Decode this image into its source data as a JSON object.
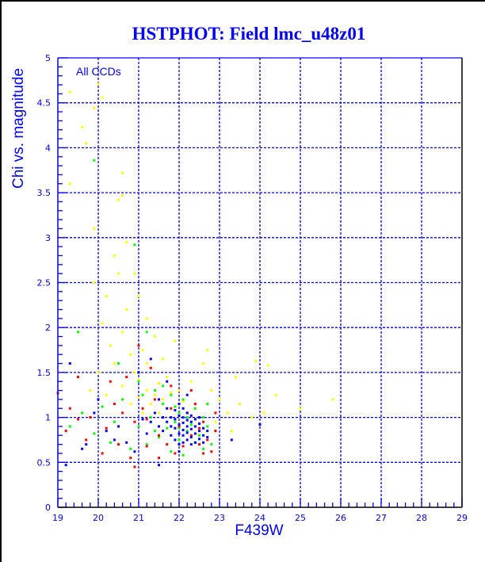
{
  "chart_data": {
    "type": "scatter",
    "title": "HSTPHOT: Field lmc_u48z01",
    "annotation": "All CCDs",
    "xlabel": "F439W",
    "ylabel": "Chi vs. magnitude",
    "xlim": [
      19,
      29
    ],
    "ylim": [
      0,
      5
    ],
    "xticks": [
      "19",
      "20",
      "21",
      "22",
      "23",
      "24",
      "25",
      "26",
      "27",
      "28",
      "29"
    ],
    "yticks": [
      "0",
      "0.5",
      "1",
      "1.5",
      "2",
      "2.5",
      "3",
      "3.5",
      "4",
      "4.5",
      "5"
    ],
    "grid": true,
    "colors": {
      "grid": "#0000ff",
      "axis": "#000000",
      "text": "#0000ff"
    },
    "series": [
      {
        "name": "yellow",
        "color": "#ffff00",
        "points": [
          [
            19.3,
            4.62
          ],
          [
            20.0,
            4.71
          ],
          [
            20.1,
            4.56
          ],
          [
            19.9,
            4.44
          ],
          [
            19.6,
            4.23
          ],
          [
            19.7,
            4.05
          ],
          [
            20.6,
            3.72
          ],
          [
            19.3,
            3.6
          ],
          [
            20.6,
            3.47
          ],
          [
            20.5,
            3.42
          ],
          [
            19.9,
            3.1
          ],
          [
            20.7,
            2.95
          ],
          [
            20.4,
            2.8
          ],
          [
            20.5,
            2.6
          ],
          [
            19.9,
            2.5
          ],
          [
            20.2,
            2.35
          ],
          [
            20.9,
            2.6
          ],
          [
            21.0,
            2.35
          ],
          [
            20.7,
            2.2
          ],
          [
            21.2,
            2.1
          ],
          [
            20.1,
            2.05
          ],
          [
            20.6,
            1.95
          ],
          [
            21.4,
            1.9
          ],
          [
            20.3,
            1.8
          ],
          [
            21.1,
            1.75
          ],
          [
            20.8,
            1.7
          ],
          [
            21.6,
            1.65
          ],
          [
            20.4,
            1.6
          ],
          [
            21.3,
            1.55
          ],
          [
            20.9,
            1.5
          ],
          [
            21.7,
            1.45
          ],
          [
            21.0,
            1.42
          ],
          [
            21.5,
            1.38
          ],
          [
            20.6,
            1.35
          ],
          [
            21.2,
            1.3
          ],
          [
            21.8,
            1.28
          ],
          [
            21.4,
            1.25
          ],
          [
            21.0,
            1.22
          ],
          [
            21.6,
            1.2
          ],
          [
            22.1,
            1.18
          ],
          [
            21.3,
            1.15
          ],
          [
            21.9,
            1.12
          ],
          [
            22.4,
            1.1
          ],
          [
            22.8,
            1.3
          ],
          [
            23.0,
            1.2
          ],
          [
            23.2,
            1.05
          ],
          [
            23.5,
            1.15
          ],
          [
            23.8,
            1.0
          ],
          [
            24.1,
            1.05
          ],
          [
            24.4,
            1.25
          ],
          [
            24.2,
            1.58
          ],
          [
            23.9,
            1.63
          ],
          [
            25.0,
            1.1
          ],
          [
            25.8,
            1.2
          ],
          [
            23.4,
            1.45
          ],
          [
            22.6,
            1.6
          ],
          [
            22.7,
            1.75
          ],
          [
            21.9,
            1.85
          ],
          [
            22.3,
            1.4
          ],
          [
            20.2,
            1.25
          ],
          [
            19.8,
            1.3
          ],
          [
            20.0,
            1.5
          ],
          [
            21.2,
            1.6
          ],
          [
            21.7,
            1.1
          ],
          [
            22.0,
            1.3
          ],
          [
            21.5,
            1.05
          ],
          [
            22.9,
            0.95
          ],
          [
            23.3,
            0.85
          ],
          [
            20.8,
            1.15
          ],
          [
            21.1,
            1.05
          ]
        ]
      },
      {
        "name": "green",
        "color": "#00ff00",
        "points": [
          [
            19.9,
            3.86
          ],
          [
            20.9,
            2.92
          ],
          [
            21.2,
            1.95
          ],
          [
            19.5,
            1.95
          ],
          [
            20.5,
            1.6
          ],
          [
            21.0,
            1.4
          ],
          [
            21.4,
            1.3
          ],
          [
            21.8,
            1.25
          ],
          [
            22.1,
            1.2
          ],
          [
            21.6,
            1.15
          ],
          [
            22.4,
            1.1
          ],
          [
            22.0,
            1.05
          ],
          [
            21.3,
            1.0
          ],
          [
            22.6,
            1.0
          ],
          [
            21.9,
            0.95
          ],
          [
            22.3,
            0.92
          ],
          [
            22.7,
            0.9
          ],
          [
            21.7,
            0.88
          ],
          [
            22.2,
            0.85
          ],
          [
            22.5,
            0.8
          ],
          [
            21.5,
            0.78
          ],
          [
            22.0,
            0.75
          ],
          [
            22.4,
            0.72
          ],
          [
            22.8,
            0.7
          ],
          [
            21.2,
            0.7
          ],
          [
            22.6,
            0.65
          ],
          [
            21.8,
            0.62
          ],
          [
            20.8,
            0.65
          ],
          [
            20.3,
            0.72
          ],
          [
            19.9,
            0.82
          ],
          [
            19.6,
            1.05
          ],
          [
            20.1,
            1.12
          ],
          [
            20.6,
            1.2
          ],
          [
            21.1,
            1.25
          ],
          [
            22.9,
            0.85
          ],
          [
            22.1,
            0.58
          ],
          [
            21.4,
            0.85
          ],
          [
            22.7,
            1.15
          ],
          [
            21.0,
            0.9
          ],
          [
            20.4,
            0.95
          ],
          [
            19.3,
            0.9
          ],
          [
            21.6,
            1.35
          ],
          [
            22.2,
            1.0
          ],
          [
            22.0,
            0.88
          ],
          [
            21.9,
            1.12
          ]
        ]
      },
      {
        "name": "red",
        "color": "#ff0000",
        "points": [
          [
            19.0,
            1.27
          ],
          [
            19.3,
            1.1
          ],
          [
            19.5,
            0.98
          ],
          [
            19.2,
            0.85
          ],
          [
            19.7,
            0.75
          ],
          [
            20.0,
            1.2
          ],
          [
            20.3,
            1.4
          ],
          [
            20.6,
            1.05
          ],
          [
            20.9,
            0.95
          ],
          [
            20.2,
            0.88
          ],
          [
            20.5,
            0.7
          ],
          [
            20.8,
            0.55
          ],
          [
            20.9,
            0.45
          ],
          [
            21.2,
            0.68
          ],
          [
            21.5,
            0.8
          ],
          [
            21.1,
            1.1
          ],
          [
            21.4,
            1.2
          ],
          [
            21.8,
            1.35
          ],
          [
            21.6,
            1.0
          ],
          [
            22.0,
            0.9
          ],
          [
            22.3,
            0.8
          ],
          [
            22.5,
            0.7
          ],
          [
            22.7,
            0.75
          ],
          [
            22.9,
            0.85
          ],
          [
            22.6,
            0.95
          ],
          [
            22.2,
            1.05
          ],
          [
            22.4,
            1.15
          ],
          [
            21.9,
            0.6
          ],
          [
            22.6,
            0.6
          ],
          [
            22.8,
            0.62
          ],
          [
            20.7,
            1.45
          ],
          [
            21.3,
            1.55
          ],
          [
            21.0,
            1.8
          ],
          [
            20.1,
            0.6
          ],
          [
            19.8,
            1.0
          ],
          [
            21.7,
            0.7
          ],
          [
            22.1,
            0.68
          ],
          [
            20.4,
            1.15
          ],
          [
            22.5,
            0.88
          ],
          [
            21.2,
            0.98
          ],
          [
            22.3,
            1.3
          ],
          [
            21.5,
            0.55
          ],
          [
            19.5,
            1.45
          ],
          [
            22.9,
            1.05
          ],
          [
            21.8,
            1.1
          ]
        ]
      },
      {
        "name": "blue",
        "color": "#0000ff",
        "points": [
          [
            19.2,
            0.47
          ],
          [
            19.3,
            1.6
          ],
          [
            19.6,
            0.65
          ],
          [
            19.7,
            0.7
          ],
          [
            19.9,
            1.05
          ],
          [
            20.0,
            1.2
          ],
          [
            20.2,
            0.85
          ],
          [
            20.4,
            0.75
          ],
          [
            20.7,
            0.72
          ],
          [
            20.9,
            0.62
          ],
          [
            21.0,
            1.5
          ],
          [
            21.3,
            1.65
          ],
          [
            21.5,
            0.47
          ],
          [
            21.1,
            0.98
          ],
          [
            21.3,
            0.95
          ],
          [
            21.4,
            1.05
          ],
          [
            21.5,
            0.9
          ],
          [
            21.6,
            1.0
          ],
          [
            21.6,
            0.85
          ],
          [
            21.7,
            0.95
          ],
          [
            21.7,
            1.1
          ],
          [
            21.8,
            0.8
          ],
          [
            21.8,
            0.9
          ],
          [
            21.8,
            1.0
          ],
          [
            21.9,
            0.75
          ],
          [
            21.9,
            0.88
          ],
          [
            21.9,
            0.98
          ],
          [
            21.9,
            1.08
          ],
          [
            22.0,
            0.7
          ],
          [
            22.0,
            0.82
          ],
          [
            22.0,
            0.92
          ],
          [
            22.0,
            1.02
          ],
          [
            22.0,
            1.15
          ],
          [
            22.1,
            0.72
          ],
          [
            22.1,
            0.8
          ],
          [
            22.1,
            0.86
          ],
          [
            22.1,
            0.94
          ],
          [
            22.1,
            1.0
          ],
          [
            22.1,
            1.1
          ],
          [
            22.2,
            0.75
          ],
          [
            22.2,
            0.83
          ],
          [
            22.2,
            0.9
          ],
          [
            22.2,
            0.97
          ],
          [
            22.2,
            1.05
          ],
          [
            22.3,
            0.7
          ],
          [
            22.3,
            0.78
          ],
          [
            22.3,
            0.87
          ],
          [
            22.3,
            0.95
          ],
          [
            22.3,
            1.02
          ],
          [
            22.4,
            0.72
          ],
          [
            22.4,
            0.82
          ],
          [
            22.4,
            0.9
          ],
          [
            22.4,
            0.98
          ],
          [
            22.5,
            0.76
          ],
          [
            22.5,
            0.85
          ],
          [
            22.5,
            0.93
          ],
          [
            22.5,
            1.0
          ],
          [
            22.6,
            0.8
          ],
          [
            22.6,
            0.88
          ],
          [
            22.6,
            0.72
          ],
          [
            22.7,
            0.85
          ],
          [
            22.7,
            0.78
          ],
          [
            21.7,
            1.4
          ],
          [
            21.5,
            1.2
          ],
          [
            22.2,
            1.25
          ],
          [
            24.0,
            0.92
          ],
          [
            23.3,
            0.75
          ],
          [
            22.0,
            0.62
          ],
          [
            21.2,
            0.82
          ],
          [
            20.5,
            0.9
          ]
        ]
      }
    ]
  }
}
